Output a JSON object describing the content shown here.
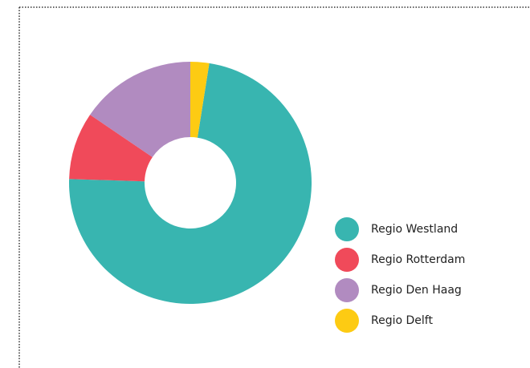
{
  "chart_data": {
    "type": "donut",
    "categories": [
      "Regio Westland",
      "Regio Rotterdam",
      "Regio Den Haag",
      "Regio Delft"
    ],
    "values": [
      73,
      9,
      15.5,
      2.5
    ],
    "colors": [
      "#38b5b0",
      "#f04a5a",
      "#b18bc0",
      "#fdcb13"
    ],
    "legend": "right"
  }
}
